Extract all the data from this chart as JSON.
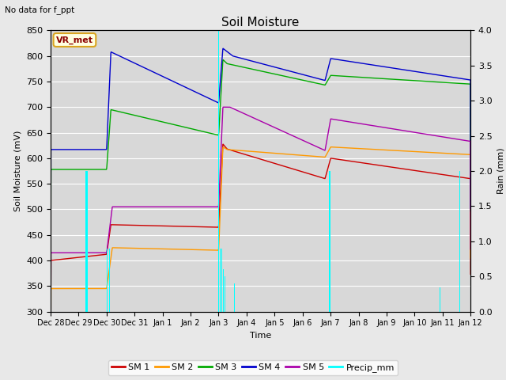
{
  "title": "Soil Moisture",
  "xlabel": "Time",
  "ylabel_left": "Soil Moisture (mV)",
  "ylabel_right": "Rain (mm)",
  "top_left_text": "No data for f_ppt",
  "annotation_box": "VR_met",
  "ylim_left": [
    300,
    850
  ],
  "ylim_right": [
    0.0,
    4.0
  ],
  "yticks_left": [
    300,
    350,
    400,
    450,
    500,
    550,
    600,
    650,
    700,
    750,
    800,
    850
  ],
  "yticks_right": [
    0.0,
    0.5,
    1.0,
    1.5,
    2.0,
    2.5,
    3.0,
    3.5,
    4.0
  ],
  "bg_color": "#e8e8e8",
  "plot_bg_color": "#d8d8d8",
  "sm1_color": "#cc0000",
  "sm2_color": "#ff9900",
  "sm3_color": "#00aa00",
  "sm4_color": "#0000cc",
  "sm5_color": "#aa00aa",
  "precip_color": "#00ffff",
  "legend_labels": [
    "SM 1",
    "SM 2",
    "SM 3",
    "SM 4",
    "SM 5",
    "Precip_mm"
  ],
  "xtick_labels": [
    "Dec 28",
    "Dec 29",
    "Dec 30",
    "Dec 31",
    "Jan 1",
    "Jan 2",
    "Jan 3",
    "Jan 4",
    "Jan 5",
    "Jan 6",
    "Jan 7",
    "Jan 8",
    "Jan 9",
    "Jan 10",
    "Jan 11",
    "Jan 12"
  ],
  "n_days": 15
}
